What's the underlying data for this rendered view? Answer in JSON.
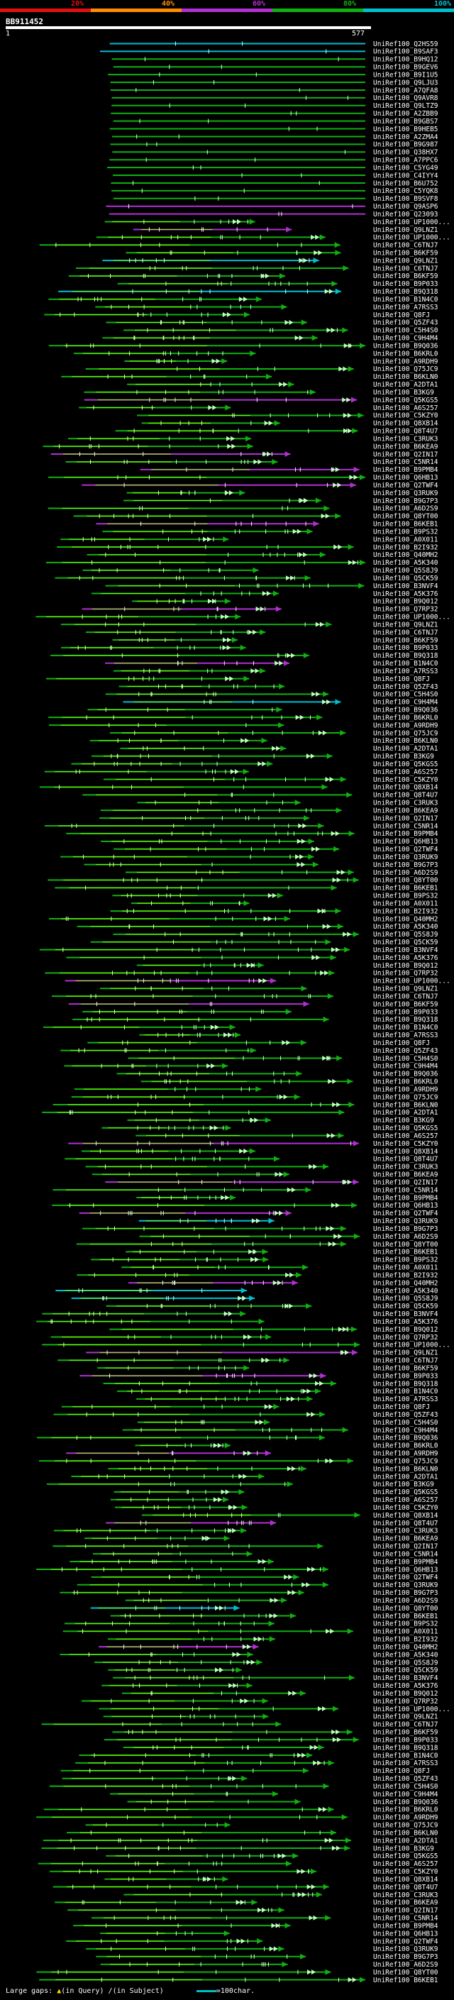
{
  "scale": {
    "labels": [
      "20%",
      "40%",
      "60%",
      "80%",
      "100%"
    ],
    "colors": [
      "#e01010",
      "#ff8c00",
      "#b030d0",
      "#10b010",
      "#00c0d0"
    ]
  },
  "query": {
    "name": "BB911452",
    "start": "1",
    "end": "577"
  },
  "hits": {
    "count": 251,
    "top_labels": [
      "UniRef100_Q2HS59",
      "UniRef100_B9SAF3",
      "UniRef100_B9HQ12",
      "UniRef100_B9GEV6",
      "UniRef100_B9I1U5",
      "UniRef100_Q9LJU3",
      "UniRef100_A7QFA8",
      "UniRef100_Q9AVR8",
      "UniRef100_Q9LTZ9",
      "UniRef100_A2ZBB9",
      "UniRef100_B9GBS7",
      "UniRef100_B9HEB5",
      "UniRef100_A2ZMA4",
      "UniRef100_B9G987",
      "UniRef100_Q38HX7",
      "UniRef100_A7PPC6",
      "UniRef100_C5YG49",
      "UniRef100_C4IYY4",
      "UniRef100_B6U752",
      "UniRef100_C5YQK8",
      "UniRef100_B9SVF8",
      "UniRef100_Q9ASP6",
      "UniRef100_Q23093",
      "UniRef100_UP1000...",
      "UniRef100_Q9LNZ1",
      "UniRef100_UP1000...",
      "UniRef100_C6TNJ7",
      "UniRef100_B6KF59"
    ],
    "labels": [
      "UniRef100_Q9LNZ1",
      "UniRef100_C6TNJ7",
      "UniRef100_B6KF59",
      "UniRef100_B9P033",
      "UniRef100_B9Q318",
      "UniRef100_B1N4C0",
      "UniRef100_A7RSS3",
      "UniRef100_Q8FJ",
      "UniRef100_Q5ZF43",
      "UniRef100_C5H4S0",
      "UniRef100_C9H4M4",
      "UniRef100_B9Q036",
      "UniRef100_B6KRL0",
      "UniRef100_A9RDH9",
      "UniRef100_Q75JC9",
      "UniRef100_B6KLN0",
      "UniRef100_A2DTA1",
      "UniRef100_B3KG9",
      "UniRef100_Q5KGS5",
      "UniRef100_A6S257",
      "UniRef100_C5KZY0",
      "UniRef100_Q8XB14",
      "UniRef100_Q8T4U7",
      "UniRef100_C3RUK3",
      "UniRef100_B6KEA9",
      "UniRef100_Q2IN17",
      "UniRef100_C5NR14",
      "UniRef100_B9PMB4",
      "UniRef100_Q6HB13",
      "UniRef100_Q2TWF4",
      "UniRef100_Q3RUK9",
      "UniRef100_B9G7P3",
      "UniRef100_A6D2S9",
      "UniRef100_Q8YT00",
      "UniRef100_B6KEB1",
      "UniRef100_B9PS32",
      "UniRef100_A0X011",
      "UniRef100_B2I932",
      "UniRef100_Q40MH2",
      "UniRef100_A5K340",
      "UniRef100_Q5S8J9",
      "UniRef100_Q5CK59",
      "UniRef100_B3NVF4",
      "UniRef100_A5K376",
      "UniRef100_B9Q012",
      "UniRef100_Q7RP32",
      "UniRef100_UP1000..."
    ]
  },
  "legend": {
    "text": "Large gaps:",
    "query_mark": "▲",
    "query_text": "(in Query)",
    "subject_mark": "/",
    "subject_text": "(in Subject)",
    "scale_text": "=100char."
  }
}
